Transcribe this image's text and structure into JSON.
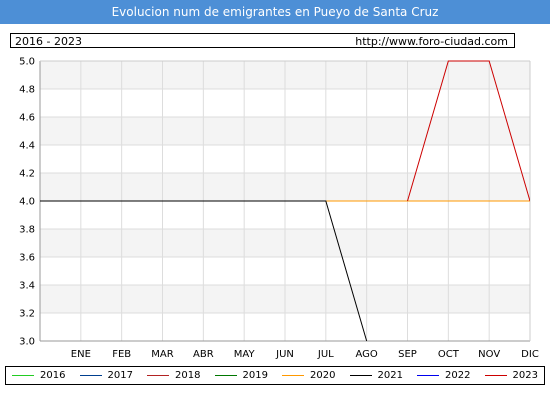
{
  "title": "Evolucion num de emigrantes en Pueyo de Santa Cruz",
  "period": "2016 - 2023",
  "url": "http://www.foro-ciudad.com",
  "chart_data": {
    "type": "line",
    "categories": [
      "ENE",
      "FEB",
      "MAR",
      "ABR",
      "MAY",
      "JUN",
      "JUL",
      "AGO",
      "SEP",
      "OCT",
      "NOV",
      "DIC"
    ],
    "ylim": [
      3.0,
      5.0
    ],
    "yticks": [
      "3.0",
      "3.2",
      "3.4",
      "3.6",
      "3.8",
      "4.0",
      "4.2",
      "4.4",
      "4.6",
      "4.8",
      "5.0"
    ],
    "grid": true,
    "legend_position": "bottom",
    "series": [
      {
        "name": "2016",
        "color": "#22cc22",
        "values": [
          null,
          null,
          null,
          null,
          null,
          null,
          null,
          null,
          null,
          null,
          null,
          null
        ]
      },
      {
        "name": "2017",
        "color": "#003f8f",
        "values": [
          null,
          null,
          null,
          null,
          null,
          null,
          null,
          null,
          null,
          null,
          null,
          null
        ]
      },
      {
        "name": "2018",
        "color": "#b22222",
        "values": [
          null,
          null,
          null,
          null,
          null,
          null,
          null,
          null,
          null,
          null,
          null,
          null
        ]
      },
      {
        "name": "2019",
        "color": "#007700",
        "values": [
          null,
          null,
          null,
          null,
          null,
          null,
          null,
          null,
          null,
          null,
          null,
          null
        ]
      },
      {
        "name": "2020",
        "color": "#ff9900",
        "values": [
          null,
          null,
          null,
          null,
          null,
          null,
          4,
          4,
          4,
          4,
          4,
          4
        ]
      },
      {
        "name": "2021",
        "color": "#000000",
        "values": [
          4,
          4,
          4,
          4,
          4,
          4,
          4,
          3,
          null,
          null,
          null,
          null
        ]
      },
      {
        "name": "2022",
        "color": "#0000ee",
        "values": [
          null,
          null,
          null,
          null,
          null,
          null,
          null,
          null,
          null,
          null,
          null,
          null
        ]
      },
      {
        "name": "2023",
        "color": "#cc0000",
        "values": [
          null,
          null,
          null,
          null,
          null,
          null,
          null,
          null,
          4,
          5,
          5,
          4
        ]
      }
    ]
  }
}
